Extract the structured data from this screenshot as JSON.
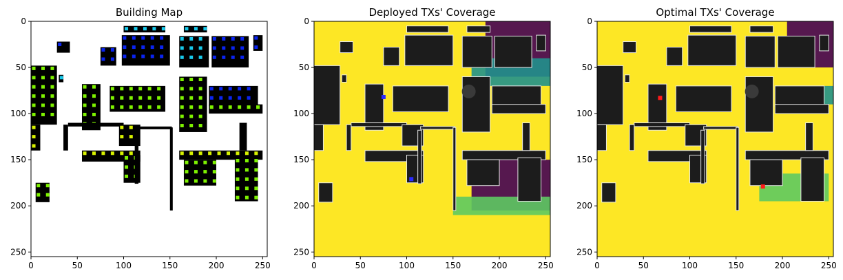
{
  "chart_data": [
    {
      "type": "heatmap",
      "title": "Building Map",
      "xlim": [
        0,
        255
      ],
      "ylim": [
        255,
        0
      ],
      "xticks": [
        "0",
        "50",
        "100",
        "150",
        "200",
        "250"
      ],
      "yticks": [
        "0",
        "50",
        "100",
        "150",
        "200",
        "250"
      ],
      "buildings": [
        {
          "x": [
            28,
            42
          ],
          "y": [
            22,
            34
          ],
          "tx": "blue"
        },
        {
          "x": [
            75,
            92
          ],
          "y": [
            28,
            48
          ],
          "tx": "blue"
        },
        {
          "x": [
            100,
            145
          ],
          "y": [
            5,
            12
          ],
          "tx": "cyan"
        },
        {
          "x": [
            98,
            150
          ],
          "y": [
            15,
            48
          ],
          "tx": "blue"
        },
        {
          "x": [
            165,
            190
          ],
          "y": [
            5,
            12
          ],
          "tx": "cyan"
        },
        {
          "x": [
            160,
            192
          ],
          "y": [
            16,
            50
          ],
          "tx": "cyan"
        },
        {
          "x": [
            195,
            235
          ],
          "y": [
            16,
            50
          ],
          "tx": "blue"
        },
        {
          "x": [
            240,
            250
          ],
          "y": [
            15,
            32
          ],
          "tx": "blue"
        },
        {
          "x": [
            0,
            28
          ],
          "y": [
            48,
            112
          ],
          "tx": "lime"
        },
        {
          "x": [
            30,
            35
          ],
          "y": [
            58,
            66
          ],
          "tx": "cyan"
        },
        {
          "x": [
            55,
            75
          ],
          "y": [
            68,
            118
          ],
          "tx": "lime"
        },
        {
          "x": [
            85,
            145
          ],
          "y": [
            70,
            98
          ],
          "tx": "lime"
        },
        {
          "x": [
            160,
            190
          ],
          "y": [
            60,
            120
          ],
          "tx": "lime"
        },
        {
          "x": [
            192,
            245
          ],
          "y": [
            70,
            92
          ],
          "tx": "blue"
        },
        {
          "x": [
            192,
            250
          ],
          "y": [
            90,
            100
          ],
          "tx": "lime"
        },
        {
          "x": [
            0,
            10
          ],
          "y": [
            112,
            140
          ],
          "tx": "yellow"
        },
        {
          "x": [
            40,
            100
          ],
          "y": [
            110,
            114
          ],
          "tx": "yellow"
        },
        {
          "x": [
            95,
            118
          ],
          "y": [
            112,
            135
          ],
          "tx": "yellow"
        },
        {
          "x": [
            55,
            118
          ],
          "y": [
            140,
            152
          ],
          "tx": "yellow"
        },
        {
          "x": [
            100,
            118
          ],
          "y": [
            145,
            175
          ],
          "tx": "lime"
        },
        {
          "x": [
            160,
            250
          ],
          "y": [
            140,
            150
          ],
          "tx": "yellow"
        },
        {
          "x": [
            165,
            200
          ],
          "y": [
            150,
            178
          ],
          "tx": "lime"
        },
        {
          "x": [
            220,
            245
          ],
          "y": [
            148,
            195
          ],
          "tx": "lime"
        },
        {
          "x": [
            5,
            20
          ],
          "y": [
            175,
            196
          ],
          "tx": "lime"
        }
      ],
      "walls": [
        {
          "x": [
            35,
            40
          ],
          "y": [
            112,
            140
          ]
        },
        {
          "x": [
            115,
            152
          ],
          "y": [
            114,
            117
          ]
        },
        {
          "x": [
            150,
            153
          ],
          "y": [
            115,
            205
          ]
        },
        {
          "x": [
            112,
            116
          ],
          "y": [
            118,
            176
          ]
        },
        {
          "x": [
            225,
            233
          ],
          "y": [
            110,
            140
          ]
        }
      ],
      "tx_colors": {
        "blue": "#0a24f0",
        "cyan": "#17c8ea",
        "lime": "#7ef200",
        "yellow": "#d8f200"
      }
    },
    {
      "type": "heatmap",
      "title": "Deployed TXs' Coverage",
      "xlim": [
        0,
        255
      ],
      "ylim": [
        255,
        0
      ],
      "xticks": [
        "0",
        "50",
        "100",
        "150",
        "200",
        "250"
      ],
      "yticks": [
        "0",
        "50",
        "100",
        "150",
        "200",
        "250"
      ],
      "background": "#fde725",
      "dead_zones": [
        {
          "x": [
            185,
            255
          ],
          "y": [
            0,
            60
          ],
          "color": "#440154"
        },
        {
          "x": [
            170,
            255
          ],
          "y": [
            40,
            70
          ],
          "color": "#21918c"
        },
        {
          "x": [
            170,
            255
          ],
          "y": [
            150,
            205
          ],
          "color": "#440154"
        },
        {
          "x": [
            150,
            255
          ],
          "y": [
            190,
            210
          ],
          "color": "#5ec962"
        }
      ],
      "transmitters": [
        {
          "x": 105,
          "y": 171,
          "color": "#2a2aff"
        },
        {
          "x": 75,
          "y": 82,
          "color": "#2a2aff"
        }
      ]
    },
    {
      "type": "heatmap",
      "title": "Optimal TXs' Coverage",
      "xlim": [
        0,
        255
      ],
      "ylim": [
        255,
        0
      ],
      "xticks": [
        "0",
        "50",
        "100",
        "150",
        "200",
        "250"
      ],
      "yticks": [
        "0",
        "50",
        "100",
        "150",
        "200",
        "250"
      ],
      "background": "#fde725",
      "dead_zones": [
        {
          "x": [
            205,
            255
          ],
          "y": [
            0,
            50
          ],
          "color": "#440154"
        },
        {
          "x": [
            220,
            255
          ],
          "y": [
            70,
            90
          ],
          "color": "#21918c"
        },
        {
          "x": [
            175,
            250
          ],
          "y": [
            165,
            195
          ],
          "color": "#5ec962"
        }
      ],
      "transmitters": [
        {
          "x": 68,
          "y": 83,
          "color": "#ff1a1a"
        },
        {
          "x": 179,
          "y": 179,
          "color": "#ff1a1a"
        }
      ]
    }
  ]
}
